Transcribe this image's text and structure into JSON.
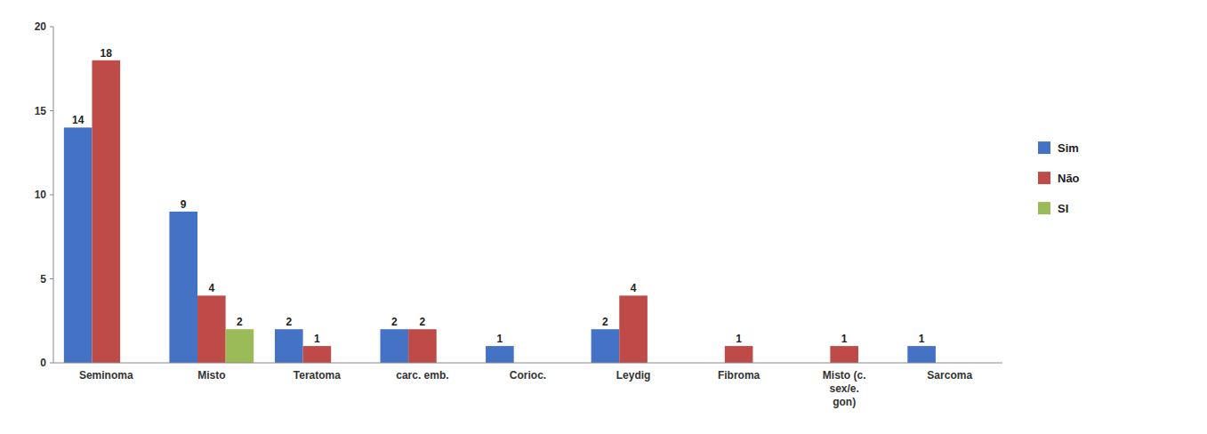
{
  "chart_data": {
    "type": "bar",
    "categories": [
      "Seminoma",
      "Misto",
      "Teratoma",
      "carc. emb.",
      "Corioc.",
      "Leydig",
      "Fibroma",
      "Misto (c.\nsex/e.\ngon)",
      "Sarcoma"
    ],
    "series": [
      {
        "name": "Sim",
        "color": "#4472C4",
        "values": [
          14,
          9,
          2,
          2,
          1,
          2,
          0,
          0,
          1
        ]
      },
      {
        "name": "Não",
        "color": "#BE4B48",
        "values": [
          18,
          4,
          1,
          2,
          0,
          4,
          1,
          1,
          0
        ]
      },
      {
        "name": "SI",
        "color": "#9BBB59",
        "values": [
          0,
          2,
          0,
          0,
          0,
          0,
          0,
          0,
          0
        ]
      }
    ],
    "ylim": [
      0,
      20
    ],
    "yticks": [
      0,
      5,
      10,
      15,
      20
    ],
    "grid": false,
    "data_labels": true,
    "legend": "right"
  }
}
